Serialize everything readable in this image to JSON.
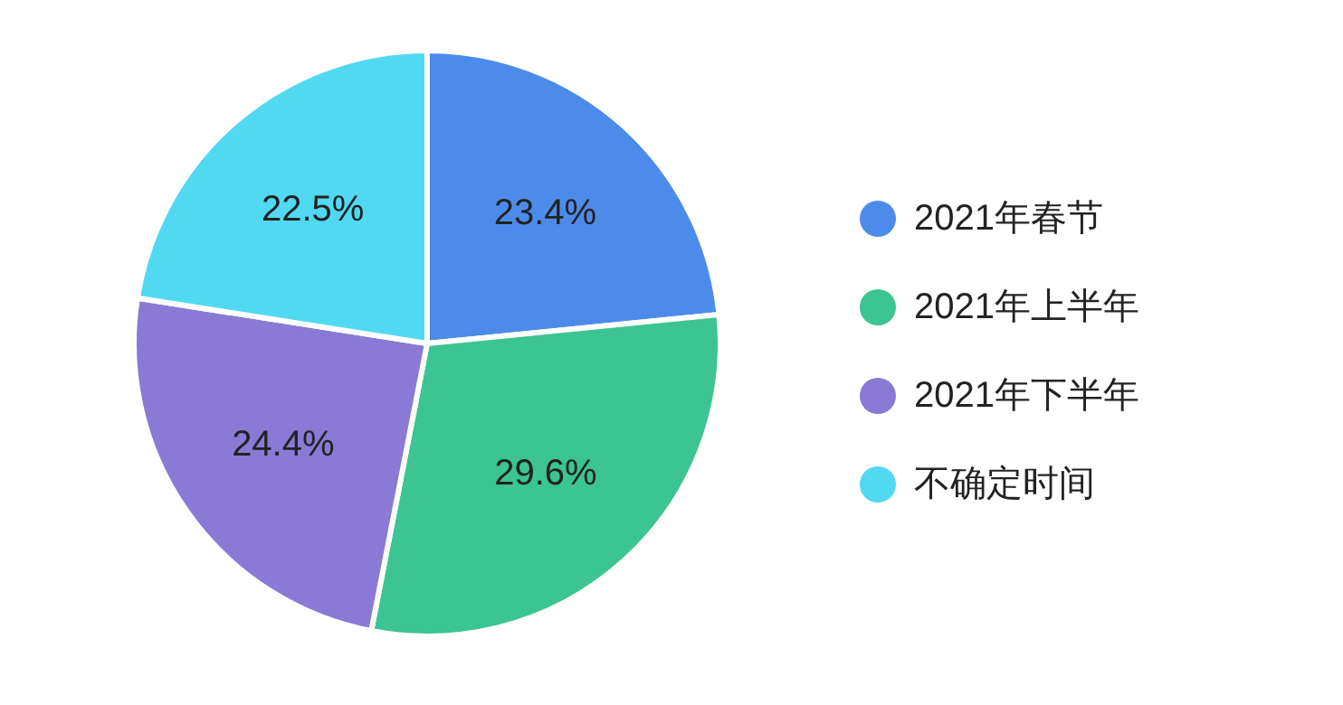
{
  "chart_data": {
    "type": "pie",
    "categories": [
      "2021年春节",
      "2021年上半年",
      "2021年下半年",
      "不确定时间"
    ],
    "values": [
      23.4,
      29.6,
      24.4,
      22.5
    ],
    "value_labels": [
      "23.4%",
      "29.6%",
      "24.4%",
      "22.5%"
    ],
    "colors": [
      "#4d8bea",
      "#3cc492",
      "#8a7ad6",
      "#52d9f2"
    ],
    "legend": "right"
  }
}
